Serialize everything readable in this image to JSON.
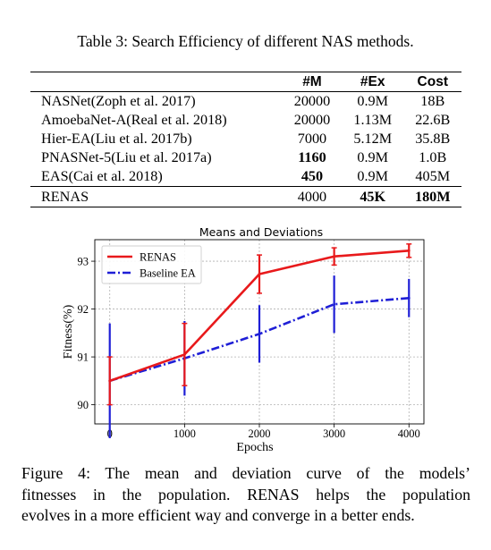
{
  "table": {
    "caption": "Table 3: Search Efficiency of different NAS methods.",
    "headers": [
      "",
      "#M",
      "#Ex",
      "Cost"
    ],
    "rows": [
      {
        "method": "NASNet(Zoph et al. 2017)",
        "m": "20000",
        "ex": "0.9M",
        "cost": "18B",
        "bold": []
      },
      {
        "method": "AmoebaNet-A(Real et al. 2018)",
        "m": "20000",
        "ex": "1.13M",
        "cost": "22.6B",
        "bold": []
      },
      {
        "method": "Hier-EA(Liu et al. 2017b)",
        "m": "7000",
        "ex": "5.12M",
        "cost": "35.8B",
        "bold": []
      },
      {
        "method": "PNASNet-5(Liu et al. 2017a)",
        "m": "1160",
        "ex": "0.9M",
        "cost": "1.0B",
        "bold": [
          "m"
        ]
      },
      {
        "method": "EAS(Cai et al. 2018)",
        "m": "450",
        "ex": "0.9M",
        "cost": "405M",
        "bold": [
          "m"
        ]
      },
      {
        "method": "RENAS",
        "m": "4000",
        "ex": "45K",
        "cost": "180M",
        "bold": [
          "ex",
          "cost"
        ]
      }
    ]
  },
  "chart_data": {
    "type": "line",
    "title": "Means and Deviations",
    "xlabel": "Epochs",
    "ylabel": "Fitness(%)",
    "x": [
      0,
      1000,
      2000,
      3000,
      4000
    ],
    "xticks": [
      "0",
      "1000",
      "2000",
      "3000",
      "4000"
    ],
    "yticks": [
      "90",
      "91",
      "92",
      "93"
    ],
    "xlim": [
      -200,
      4200
    ],
    "ylim": [
      89.6,
      93.45
    ],
    "grid": true,
    "legend": "top-left",
    "series": [
      {
        "name": "RENAS",
        "color": "#e8191b",
        "style": "solid",
        "values": [
          90.5,
          91.05,
          92.73,
          93.1,
          93.22
        ],
        "errors": [
          0.5,
          0.65,
          0.4,
          0.18,
          0.14
        ]
      },
      {
        "name": "Baseline EA",
        "color": "#1f1fd6",
        "style": "dashdot",
        "values": [
          90.5,
          90.97,
          91.48,
          92.1,
          92.23
        ],
        "errors": [
          1.2,
          0.78,
          0.6,
          0.6,
          0.4
        ]
      }
    ]
  },
  "figure": {
    "caption_lines": [
      "Figure 4:  The mean and deviation curve of the models’",
      "fitnesses in the population.  RENAS helps the population",
      "evolves in a more efficient way and converge in a better ends."
    ]
  }
}
